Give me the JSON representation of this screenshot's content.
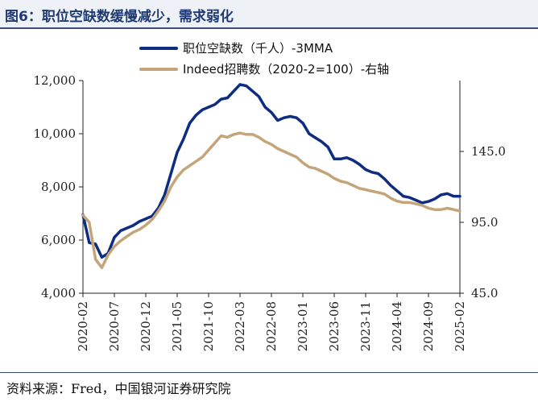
{
  "title": "图6：职位空缺数缓慢减少，需求弱化",
  "source": "资料来源：Fred，中国银河证券研究院",
  "colors": {
    "series1": "#0d2c82",
    "series2": "#c4a57a",
    "axis": "#222222",
    "title_bg": "#eef2f7"
  },
  "chart_data": {
    "type": "line",
    "x_ticks": [
      "2020-02",
      "2020-07",
      "2020-12",
      "2021-05",
      "2021-10",
      "2022-03",
      "2022-08",
      "2023-01",
      "2023-06",
      "2023-11",
      "2024-04",
      "2024-09",
      "2025-02"
    ],
    "left_axis": {
      "min": 4000,
      "max": 12000,
      "ticks": [
        4000,
        6000,
        8000,
        10000,
        12000
      ],
      "tick_labels": [
        "4,000",
        "6,000",
        "8,000",
        "10,000",
        "12,000"
      ]
    },
    "right_axis": {
      "min": 45,
      "max": 195,
      "ticks": [
        45,
        95,
        145
      ],
      "tick_labels": [
        "45.0",
        "95.0",
        "145.0"
      ]
    },
    "legend_position": "top",
    "grid": false,
    "series": [
      {
        "name": "职位空缺数（千人）-3MMA",
        "axis": "left",
        "color": "#0d2c82",
        "x": [
          "2020-02",
          "2020-03",
          "2020-04",
          "2020-05",
          "2020-06",
          "2020-07",
          "2020-08",
          "2020-09",
          "2020-10",
          "2020-11",
          "2020-12",
          "2021-01",
          "2021-02",
          "2021-03",
          "2021-04",
          "2021-05",
          "2021-06",
          "2021-07",
          "2021-08",
          "2021-09",
          "2021-10",
          "2021-11",
          "2021-12",
          "2022-01",
          "2022-02",
          "2022-03",
          "2022-04",
          "2022-05",
          "2022-06",
          "2022-07",
          "2022-08",
          "2022-09",
          "2022-10",
          "2022-11",
          "2022-12",
          "2023-01",
          "2023-02",
          "2023-03",
          "2023-04",
          "2023-05",
          "2023-06",
          "2023-07",
          "2023-08",
          "2023-09",
          "2023-10",
          "2023-11",
          "2023-12",
          "2024-01",
          "2024-02",
          "2024-03",
          "2024-04",
          "2024-05",
          "2024-06",
          "2024-07",
          "2024-08",
          "2024-09",
          "2024-10",
          "2024-11",
          "2024-12",
          "2025-01",
          "2025-02"
        ],
        "values": [
          6950,
          5900,
          5850,
          5350,
          5500,
          6100,
          6350,
          6450,
          6550,
          6700,
          6800,
          6900,
          7200,
          7700,
          8500,
          9300,
          9800,
          10400,
          10700,
          10900,
          11000,
          11100,
          11300,
          11350,
          11600,
          11850,
          11800,
          11600,
          11400,
          11000,
          10800,
          10500,
          10600,
          10650,
          10600,
          10400,
          10000,
          9850,
          9700,
          9500,
          9050,
          9050,
          9100,
          9000,
          8850,
          8650,
          8550,
          8500,
          8300,
          8050,
          7850,
          7650,
          7600,
          7500,
          7400,
          7450,
          7550,
          7700,
          7750,
          7650,
          7650
        ]
      },
      {
        "name": "Indeed招聘数（2020-2=100）-右轴",
        "axis": "right",
        "color": "#c4a57a",
        "x": [
          "2020-02",
          "2020-03",
          "2020-04",
          "2020-05",
          "2020-06",
          "2020-07",
          "2020-08",
          "2020-09",
          "2020-10",
          "2020-11",
          "2020-12",
          "2021-01",
          "2021-02",
          "2021-03",
          "2021-04",
          "2021-05",
          "2021-06",
          "2021-07",
          "2021-08",
          "2021-09",
          "2021-10",
          "2021-11",
          "2021-12",
          "2022-01",
          "2022-02",
          "2022-03",
          "2022-04",
          "2022-05",
          "2022-06",
          "2022-07",
          "2022-08",
          "2022-09",
          "2022-10",
          "2022-11",
          "2022-12",
          "2023-01",
          "2023-02",
          "2023-03",
          "2023-04",
          "2023-05",
          "2023-06",
          "2023-07",
          "2023-08",
          "2023-09",
          "2023-10",
          "2023-11",
          "2023-12",
          "2024-01",
          "2024-02",
          "2024-03",
          "2024-04",
          "2024-05",
          "2024-06",
          "2024-07",
          "2024-08",
          "2024-09",
          "2024-10",
          "2024-11",
          "2024-12",
          "2025-01",
          "2025-02"
        ],
        "values": [
          100,
          95,
          69,
          63,
          72,
          78,
          82,
          85,
          88,
          90,
          93,
          97,
          103,
          110,
          120,
          127,
          132,
          135,
          138,
          141,
          146,
          151,
          156,
          155,
          157,
          158,
          157,
          157,
          155,
          152,
          150,
          147,
          145,
          143,
          141,
          137,
          134,
          133,
          131,
          129,
          126,
          124,
          123,
          121,
          119,
          118,
          117,
          116,
          115,
          112,
          110,
          109,
          109,
          108,
          107,
          105,
          104,
          104,
          105,
          104,
          103
        ]
      }
    ]
  }
}
